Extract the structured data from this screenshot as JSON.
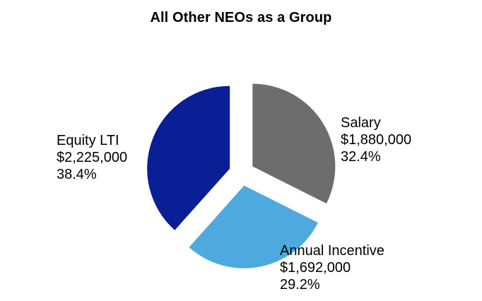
{
  "chart_data": {
    "type": "pie",
    "title": "All Other NEOs as a Group",
    "slices": [
      {
        "name": "Salary",
        "amount": "$1,880,000",
        "percent_label": "32.4%",
        "value": 32.4,
        "color": "#6d6d6d"
      },
      {
        "name": "Annual Incentive",
        "amount": "$1,692,000",
        "percent_label": "29.2%",
        "value": 29.2,
        "color": "#4ea9de"
      },
      {
        "name": "Equity LTI",
        "amount": "$2,225,000",
        "percent_label": "38.4%",
        "value": 38.4,
        "color": "#0a1e96"
      }
    ]
  }
}
